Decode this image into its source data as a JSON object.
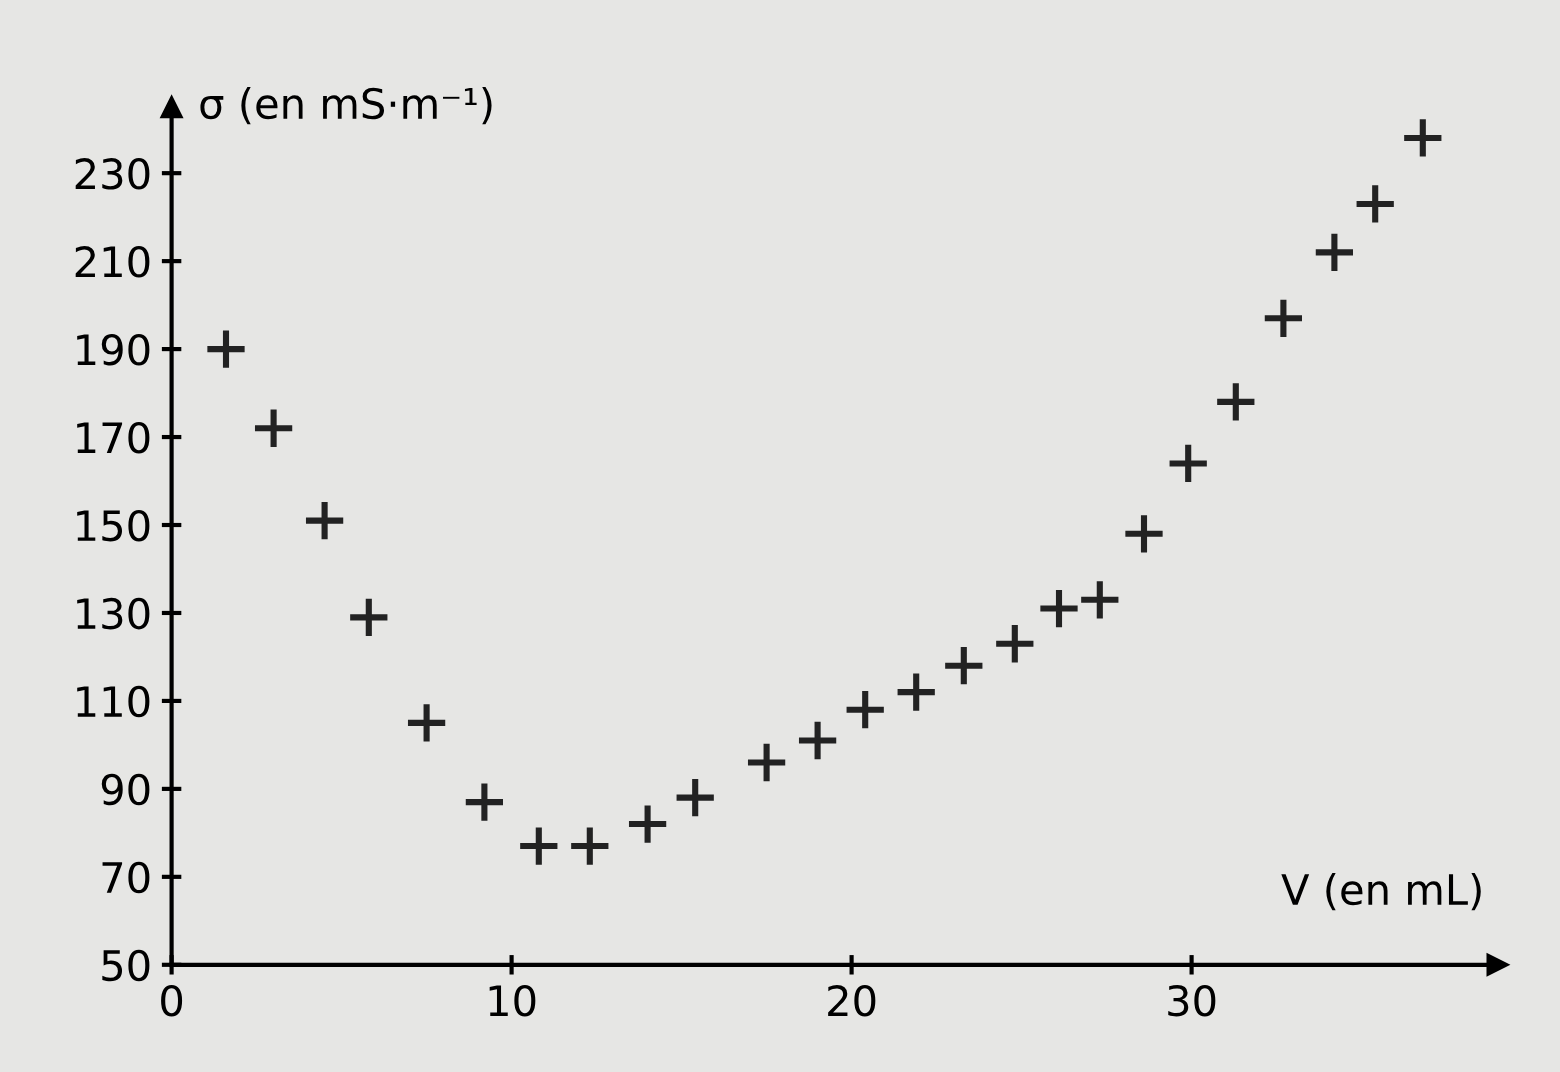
{
  "chart_data": {
    "type": "scatter",
    "ylabel": "σ (en mS·m⁻¹)",
    "xlabel": "V (en mL)",
    "marker": "cross",
    "grid": false,
    "x": [
      1.6,
      3,
      4.5,
      5.8,
      7.5,
      9.2,
      10.8,
      12.3,
      14,
      15.4,
      17.5,
      19,
      20.4,
      21.9,
      23.3,
      24.8,
      26.1,
      27.3,
      28.6,
      29.9,
      31.3,
      32.7,
      34.2,
      35.4,
      36.8
    ],
    "series": [
      {
        "color": "#222222",
        "values": [
          190,
          172,
          151,
          129,
          105,
          87,
          77,
          77,
          82,
          88,
          96,
          101,
          108,
          112,
          118,
          123,
          131,
          133,
          148,
          164,
          178,
          197,
          212,
          223,
          238
        ]
      }
    ],
    "xlim": [
      0,
      39
    ],
    "ylim": [
      50,
      245
    ],
    "xticks": [
      0,
      10,
      20,
      30
    ],
    "yticks": [
      50,
      70,
      90,
      110,
      130,
      150,
      170,
      190,
      210,
      230
    ]
  }
}
